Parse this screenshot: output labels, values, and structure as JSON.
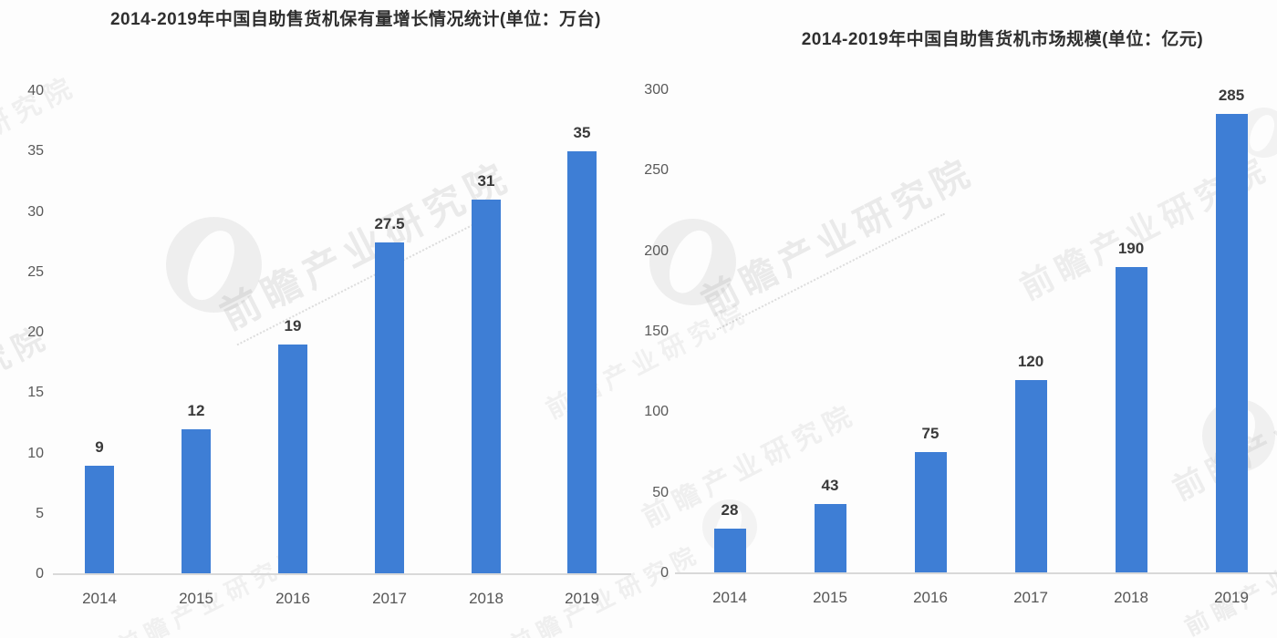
{
  "watermark": {
    "text": "前瞻产业研究院",
    "logo": "qianzhan-crescent-logo-icon"
  },
  "colors": {
    "bar": "#3e7ed5",
    "axis_line": "#d9d9d9",
    "tick_text": "#595959",
    "value_text": "#3a3a3a",
    "title_text": "#2f2f2f",
    "background": "#fdfdfd"
  },
  "chart_data": [
    {
      "type": "bar",
      "title": "2014-2019年中国自助售货机保有量增长情况统计(单位：万台)",
      "unit": "万台",
      "categories": [
        "2014",
        "2015",
        "2016",
        "2017",
        "2018",
        "2019"
      ],
      "values": [
        9,
        12,
        19,
        27.5,
        31,
        35
      ],
      "bar_labels": [
        "9",
        "12",
        "19",
        "27.5",
        "31",
        "35"
      ],
      "xlabel": "",
      "ylabel": "",
      "ylim": [
        0,
        40
      ],
      "yticks": [
        0,
        5,
        10,
        15,
        20,
        25,
        30,
        35,
        40
      ],
      "grid": false,
      "legend": false
    },
    {
      "type": "bar",
      "title": "2014-2019年中国自助售货机市场规模(单位：亿元)",
      "unit": "亿元",
      "categories": [
        "2014",
        "2015",
        "2016",
        "2017",
        "2018",
        "2019"
      ],
      "values": [
        28,
        43,
        75,
        120,
        190,
        285
      ],
      "bar_labels": [
        "28",
        "43",
        "75",
        "120",
        "190",
        "285"
      ],
      "xlabel": "",
      "ylabel": "",
      "ylim": [
        0,
        300
      ],
      "yticks": [
        0,
        50,
        100,
        150,
        200,
        250,
        300
      ],
      "grid": false,
      "legend": false
    }
  ]
}
